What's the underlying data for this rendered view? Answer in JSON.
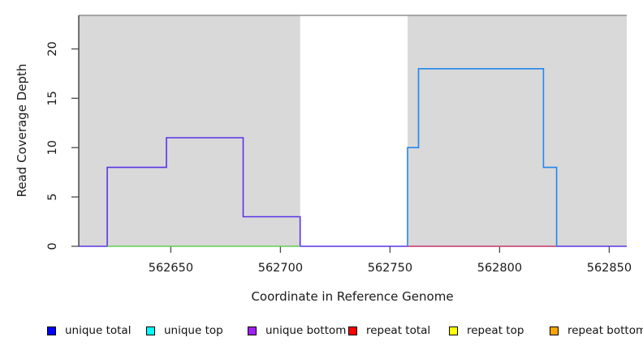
{
  "chart_data": {
    "type": "line",
    "subtype": "step",
    "title": "",
    "xlabel": "Coordinate in Reference Genome",
    "ylabel": "Read Coverage Depth",
    "xlim": [
      562608,
      562858
    ],
    "ylim": [
      0,
      23.4
    ],
    "x_ticks": [
      562650,
      562700,
      562750,
      562800,
      562850
    ],
    "y_ticks": [
      0,
      5,
      10,
      15,
      20
    ],
    "grid": false,
    "plot_bg": "#ffffff",
    "shaded_regions": [
      {
        "x0": 562608,
        "x1": 562709,
        "color": "#d9d9d9"
      },
      {
        "x0": 562758,
        "x1": 562858,
        "color": "#d9d9d9"
      }
    ],
    "top_border_color": "#8f8f8f",
    "axis_color": "#2e2e2e",
    "tick_color": "#4a4a4a",
    "series": [
      {
        "name": "purple step (unique bottom)",
        "color": "#5b33e6",
        "width": 1.6,
        "points": [
          [
            562608,
            0
          ],
          [
            562621,
            0
          ],
          [
            562621,
            8
          ],
          [
            562648,
            8
          ],
          [
            562648,
            11
          ],
          [
            562683,
            11
          ],
          [
            562683,
            3
          ],
          [
            562709,
            3
          ],
          [
            562709,
            0
          ],
          [
            562858,
            0
          ]
        ]
      },
      {
        "name": "green baseline",
        "color": "#61d04f",
        "width": 1.4,
        "points": [
          [
            562621,
            0
          ],
          [
            562709,
            0
          ]
        ]
      },
      {
        "name": "red baseline (repeat total)",
        "color": "#df536b",
        "width": 1.4,
        "points": [
          [
            562758,
            0
          ],
          [
            562826,
            0
          ]
        ]
      },
      {
        "name": "blue step (unique total)",
        "color": "#2288ec",
        "width": 1.6,
        "points": [
          [
            562758,
            0
          ],
          [
            562758,
            10
          ],
          [
            562763,
            10
          ],
          [
            562763,
            18
          ],
          [
            562820,
            18
          ],
          [
            562820,
            8
          ],
          [
            562826,
            8
          ],
          [
            562826,
            0
          ]
        ]
      }
    ],
    "legend": {
      "position": "bottom",
      "items": [
        {
          "label": "unique total",
          "color": "#0000ff"
        },
        {
          "label": "unique top",
          "color": "#00ffff"
        },
        {
          "label": "unique bottom",
          "color": "#a020f0"
        },
        {
          "label": "repeat total",
          "color": "#ff0000"
        },
        {
          "label": "repeat top",
          "color": "#ffff00"
        },
        {
          "label": "repeat bottom",
          "color": "#ffa500"
        }
      ]
    }
  }
}
